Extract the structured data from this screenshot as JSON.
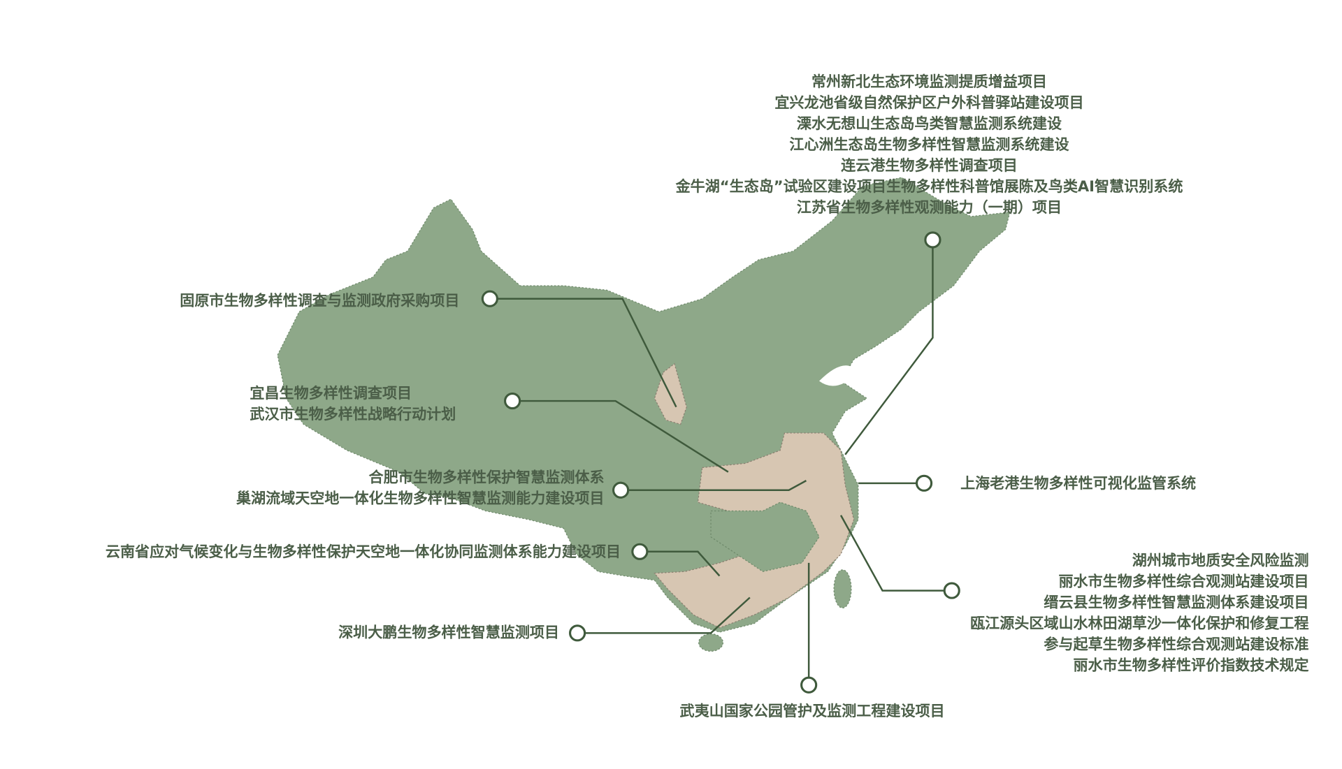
{
  "projects": [
    {
      "labels": [
        "常州新北生态环境监测提质增益项目",
        "宜兴龙池省级自然保护区户外科普驿站建设项目",
        "溧水无想山生态岛鸟类智慧监测系统建设",
        "江心洲生态岛生物多样性智慧监测系统建设",
        "连云港生物多样性调查项目",
        "金牛湖“生态岛”试验区建设项目生物多样性科普馆展陈及鸟类AI智慧识别系统",
        "江苏省生物多样性观测能力（一期）项目"
      ]
    },
    {
      "labels": [
        "固原市生物多样性调查与监测政府采购项目"
      ]
    },
    {
      "labels": [
        "宜昌生物多样性调查项目",
        "武汉市生物多样性战略行动计划"
      ]
    },
    {
      "labels": [
        "合肥市生物多样性保护智慧监测体系",
        "巢湖流域天空地一体化生物多样性智慧监测能力建设项目"
      ]
    },
    {
      "labels": [
        "云南省应对气候变化与生物多样性保护天空地一体化协同监测体系能力建设项目"
      ]
    },
    {
      "labels": [
        "深圳大鹏生物多样性智慧监测项目"
      ]
    },
    {
      "labels": [
        "武夷山国家公园管护及监测工程建设项目"
      ]
    },
    {
      "labels": [
        "湖州城市地质安全风险监测",
        "丽水市生物多样性综合观测站建设项目",
        "缙云县生物多样性智慧监测体系建设项目",
        "瓯江源头区域山水林田湖草沙一体化保护和修复工程",
        "参与起草生物多样性综合观测站建设标准",
        "丽水市生物多样性评价指数技术规定"
      ]
    },
    {
      "labels": [
        "上海老港生物多样性可视化监管系统"
      ]
    }
  ]
}
